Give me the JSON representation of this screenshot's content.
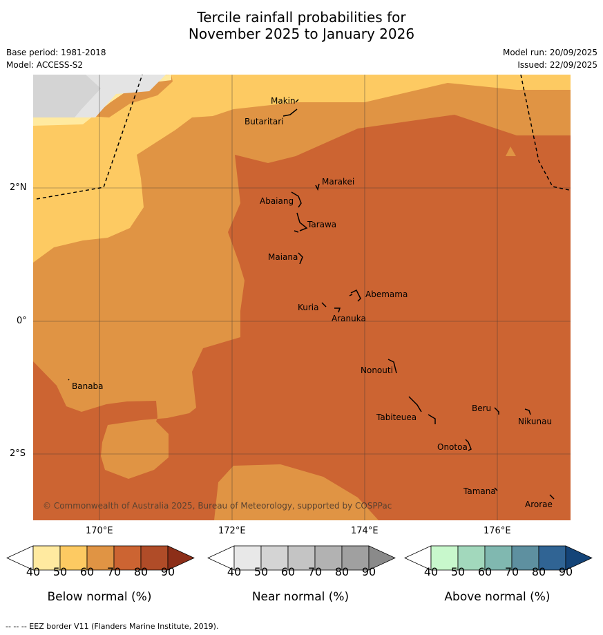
{
  "title": {
    "line1": "Tercile rainfall probabilities for",
    "line2": "November 2025 to January 2026"
  },
  "meta": {
    "base_period": "Base period: 1981-2018",
    "model": "Model: ACCESS-S2",
    "model_run": "Model run: 20/09/2025",
    "issued": "Issued: 22/09/2025"
  },
  "map": {
    "lat_labels": [
      "2°N",
      "0°",
      "2°S"
    ],
    "lon_labels": [
      "170°E",
      "172°E",
      "174°E",
      "176°E"
    ],
    "copyright": "© Commonwealth of Australia 2025, Bureau of Meteorology, supported by COSPPac",
    "islands": [
      "Makin",
      "Butaritari",
      "Marakei",
      "Abaiang",
      "Tarawa",
      "Maiana",
      "Abemama",
      "Kuria",
      "Aranuka",
      "Banaba",
      "Nonouti",
      "Beru",
      "Nikunau",
      "Tabiteuea",
      "Onotoa",
      "Tamana",
      "Arorae"
    ]
  },
  "colorbars": [
    {
      "label": "Below normal (%)",
      "ticks": [
        "40",
        "50",
        "60",
        "70",
        "80",
        "90"
      ],
      "colors": [
        "#ffffff",
        "#ffeaa0",
        "#fdca62",
        "#e09444",
        "#cc6432",
        "#b04c28",
        "#8c2e18"
      ]
    },
    {
      "label": "Near normal (%)",
      "ticks": [
        "40",
        "50",
        "60",
        "70",
        "80",
        "90"
      ],
      "colors": [
        "#ffffff",
        "#e8e8e8",
        "#d4d4d4",
        "#c4c4c4",
        "#b2b2b2",
        "#a0a0a0",
        "#8a8a8a"
      ]
    },
    {
      "label": "Above normal (%)",
      "ticks": [
        "40",
        "50",
        "60",
        "70",
        "80",
        "90"
      ],
      "colors": [
        "#ffffff",
        "#c8f8cc",
        "#a2d8bc",
        "#80b8b0",
        "#5e90a0",
        "#306494",
        "#144478"
      ]
    }
  ],
  "footer": "--  --  -- EEZ border V11 (Flanders Marine Institute, 2019)."
}
